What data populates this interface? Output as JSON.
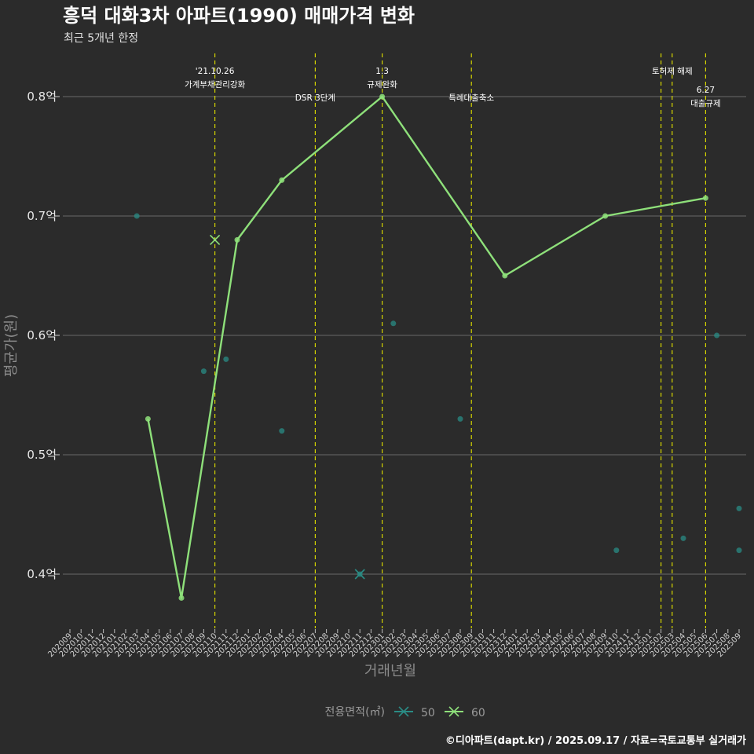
{
  "chart_data": {
    "type": "line",
    "title": "흥덕 대화3차 아파트(1990) 매매가격 변화",
    "subtitle": "최근 5개년 한정",
    "xlabel": "거래년월",
    "ylabel": "평균가(원)",
    "caption": "©디아파트(dapt.kr) / 2025.09.17 / 자료=국토교통부 실거래가",
    "y_ticks": [
      {
        "value": 0.4,
        "label": "0.4억"
      },
      {
        "value": 0.5,
        "label": "0.5억"
      },
      {
        "value": 0.6,
        "label": "0.6억"
      },
      {
        "value": 0.7,
        "label": "0.7억"
      },
      {
        "value": 0.8,
        "label": "0.8억"
      }
    ],
    "ylim": [
      0.36,
      0.835
    ],
    "categories": [
      "202009",
      "202010",
      "202011",
      "202012",
      "202101",
      "202102",
      "202103",
      "202104",
      "202105",
      "202106",
      "202107",
      "202108",
      "202109",
      "202110",
      "202111",
      "202112",
      "202201",
      "202202",
      "202203",
      "202204",
      "202205",
      "202206",
      "202207",
      "202208",
      "202209",
      "202210",
      "202211",
      "202212",
      "202301",
      "202302",
      "202303",
      "202304",
      "202305",
      "202306",
      "202307",
      "202308",
      "202309",
      "202310",
      "202311",
      "202312",
      "202401",
      "202402",
      "202403",
      "202404",
      "202405",
      "202406",
      "202407",
      "202408",
      "202409",
      "202410",
      "202411",
      "202412",
      "202501",
      "202502",
      "202503",
      "202504",
      "202505",
      "202506",
      "202507",
      "202508",
      "202509"
    ],
    "series": [
      {
        "name": "50",
        "color": "#2a8c85",
        "line": [],
        "points": [
          {
            "x": "202103",
            "y": 0.7
          },
          {
            "x": "202109",
            "y": 0.57
          },
          {
            "x": "202111",
            "y": 0.58
          },
          {
            "x": "202204",
            "y": 0.52
          },
          {
            "x": "202211",
            "y": 0.4
          },
          {
            "x": "202302",
            "y": 0.61
          },
          {
            "x": "202308",
            "y": 0.53
          },
          {
            "x": "202410",
            "y": 0.42
          },
          {
            "x": "202504",
            "y": 0.43
          },
          {
            "x": "202507",
            "y": 0.6
          },
          {
            "x": "202509",
            "y": 0.455
          },
          {
            "x": "202509",
            "y": 0.42
          }
        ],
        "x_marks": [
          {
            "x": "202211",
            "y": 0.4
          }
        ]
      },
      {
        "name": "60",
        "color": "#8ee07a",
        "line": [
          {
            "x": "202104",
            "y": 0.53
          },
          {
            "x": "202107",
            "y": 0.38
          },
          {
            "x": "202112",
            "y": 0.68
          },
          {
            "x": "202204",
            "y": 0.73
          },
          {
            "x": "202301",
            "y": 0.8
          },
          {
            "x": "202312",
            "y": 0.65
          },
          {
            "x": "202409",
            "y": 0.7
          },
          {
            "x": "202506",
            "y": 0.715
          }
        ],
        "points": [],
        "x_marks": [
          {
            "x": "202110",
            "y": 0.68
          }
        ]
      }
    ],
    "events": [
      {
        "x": "202110",
        "lines": [
          "'21.10.26",
          "가계부채관리강화"
        ],
        "level": 1
      },
      {
        "x": "202207",
        "lines": [
          "DSR 3단계"
        ],
        "level": 2
      },
      {
        "x": "202301",
        "lines": [
          "1.3",
          "규제완화"
        ],
        "level": 1
      },
      {
        "x": "202309",
        "lines": [
          "특례대출축소"
        ],
        "level": 2
      },
      {
        "x": "202502",
        "lines": [],
        "level": 0
      },
      {
        "x": "202503",
        "lines": [
          "토허제 해제"
        ],
        "level": 1
      },
      {
        "x": "202506",
        "lines": [
          "6.27",
          "대출규제"
        ],
        "level": 3
      }
    ],
    "legend": {
      "title": "전용면적(㎡)",
      "items": [
        "50",
        "60"
      ],
      "position": "bottom"
    },
    "grid": true
  }
}
